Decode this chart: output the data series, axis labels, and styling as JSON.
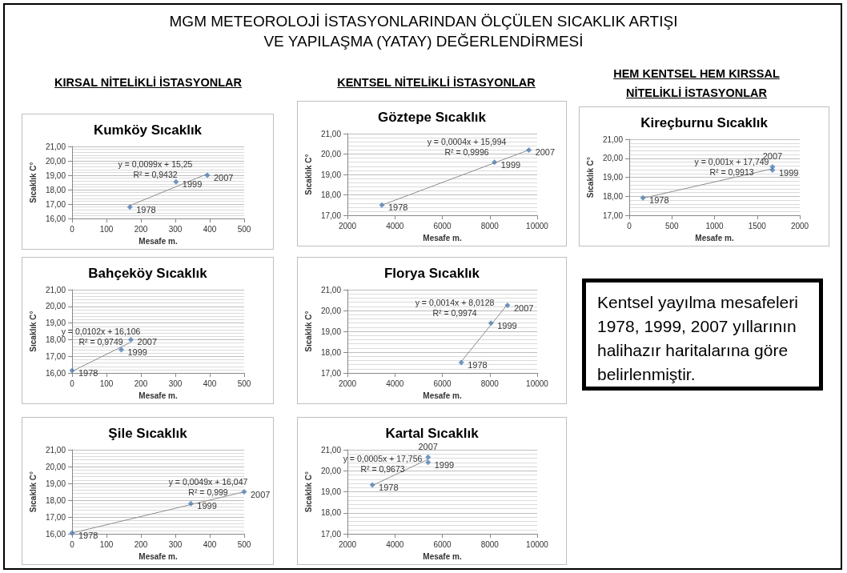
{
  "chart_data": [
    {
      "type": "other",
      "title": "MGM METEOROLOJİ İSTASYONLARINDAN ÖLÇÜLEN SICAKLIK ARTIŞI VE YAPILAŞMA (YATAY) DEĞERLENDİRMESİ",
      "annotations": [
        "KIRSAL NİTELİKLİ İSTASYONLAR",
        "KENTSEL NİTELİKLİ İSTASYONLAR",
        "HEM KENTSEL HEM KIRSSAL NİTELİKLİ İSTASYONLAR"
      ]
    },
    {
      "type": "scatter",
      "title": "Kumköy Sıcaklık",
      "xlabel": "Mesafe m.",
      "ylabel": "Sıcaklık C°",
      "grid": "y",
      "xlim": [
        0,
        500
      ],
      "xticks": [
        0,
        100,
        200,
        300,
        400,
        500
      ],
      "ylim": [
        16,
        21
      ],
      "yticks": [
        {
          "value": 16,
          "label": "16,00"
        },
        {
          "value": 17,
          "label": "17,00"
        },
        {
          "value": 18,
          "label": "18,00"
        },
        {
          "value": 19,
          "label": "19,00"
        },
        {
          "value": 20,
          "label": "20,00"
        },
        {
          "value": 21,
          "label": "21,00"
        }
      ],
      "series": [
        {
          "color": "#4a7ebb",
          "marker": "diamond",
          "x": [
            168,
            302,
            393
          ],
          "values": [
            16.8,
            18.55,
            19.0
          ]
        },
        {
          "type": "line",
          "marker": "none",
          "color": "#8c8c8c",
          "x": [
            168,
            393
          ],
          "values": [
            16.9,
            19.1
          ]
        }
      ],
      "annotations": [
        {
          "text": "1978",
          "x": 168,
          "y": 16.8
        },
        {
          "text": "1999",
          "x": 302,
          "y": 18.55
        },
        {
          "text": "2007",
          "x": 393,
          "y": 19.0
        },
        "y = 0,0099x + 15,25",
        "R² = 0,9432"
      ]
    },
    {
      "type": "scatter",
      "title": "Göztepe Sıcaklık",
      "xlabel": "Mesafe m.",
      "ylabel": "Sıcaklık C°",
      "grid": "y",
      "xlim": [
        2000,
        10000
      ],
      "xticks": [
        2000,
        4000,
        6000,
        8000,
        10000
      ],
      "ylim": [
        17,
        21
      ],
      "yticks": [
        {
          "value": 17,
          "label": "17,00"
        },
        {
          "value": 18,
          "label": "18,00"
        },
        {
          "value": 19,
          "label": "19,00"
        },
        {
          "value": 20,
          "label": "20,00"
        },
        {
          "value": 21,
          "label": "21,00"
        }
      ],
      "series": [
        {
          "color": "#4a7ebb",
          "marker": "diamond",
          "x": [
            3450,
            8200,
            9650
          ],
          "values": [
            17.5,
            19.6,
            20.2
          ]
        },
        {
          "type": "line",
          "marker": "none",
          "color": "#8c8c8c",
          "x": [
            3450,
            9650
          ],
          "values": [
            17.5,
            20.2
          ]
        }
      ],
      "annotations": [
        {
          "text": "1978",
          "x": 3450,
          "y": 17.5
        },
        {
          "text": "1999",
          "x": 8200,
          "y": 19.6
        },
        {
          "text": "2007",
          "x": 9650,
          "y": 20.2
        },
        "y = 0,0004x + 15,994",
        "R² = 0,9996"
      ]
    },
    {
      "type": "scatter",
      "title": "Kireçburnu Sıcaklık",
      "xlabel": "Mesafe m.",
      "ylabel": "Sıcaklık C°",
      "grid": "y",
      "xlim": [
        0,
        2000
      ],
      "xticks": [
        0,
        500,
        1000,
        1500,
        2000
      ],
      "ylim": [
        17,
        21
      ],
      "yticks": [
        {
          "value": 17,
          "label": "17,00"
        },
        {
          "value": 18,
          "label": "18,00"
        },
        {
          "value": 19,
          "label": "19,00"
        },
        {
          "value": 20,
          "label": "20,00"
        },
        {
          "value": 21,
          "label": "21,00"
        }
      ],
      "series": [
        {
          "color": "#4a7ebb",
          "marker": "diamond",
          "x": [
            160,
            1680,
            1680
          ],
          "values": [
            17.92,
            19.38,
            19.55
          ]
        },
        {
          "type": "line",
          "marker": "none",
          "color": "#8c8c8c",
          "x": [
            160,
            1680
          ],
          "values": [
            17.9,
            19.45
          ]
        }
      ],
      "annotations": [
        {
          "text": "1978",
          "x": 160,
          "y": 17.92
        },
        {
          "text": "1999",
          "x": 1680,
          "y": 19.38
        },
        {
          "text": "2007",
          "x": 1680,
          "y": 19.55
        },
        "y = 0,001x + 17,749",
        "R² = 0,9913"
      ]
    },
    {
      "type": "scatter",
      "title": "Bahçeköy Sıcaklık",
      "xlabel": "Mesafe m.",
      "ylabel": "Sıcaklık C°",
      "grid": "y",
      "xlim": [
        0,
        500
      ],
      "xticks": [
        0,
        100,
        200,
        300,
        400,
        500
      ],
      "ylim": [
        16,
        21
      ],
      "yticks": [
        {
          "value": 16,
          "label": "16,00"
        },
        {
          "value": 17,
          "label": "17,00"
        },
        {
          "value": 18,
          "label": "18,00"
        },
        {
          "value": 19,
          "label": "19,00"
        },
        {
          "value": 20,
          "label": "20,00"
        },
        {
          "value": 21,
          "label": "21,00"
        }
      ],
      "series": [
        {
          "color": "#4a7ebb",
          "marker": "diamond",
          "x": [
            0,
            143,
            171
          ],
          "values": [
            16.15,
            17.4,
            18.0
          ]
        },
        {
          "type": "line",
          "marker": "none",
          "color": "#8c8c8c",
          "x": [
            0,
            171
          ],
          "values": [
            16.1,
            17.85
          ]
        }
      ],
      "annotations": [
        {
          "text": "1978",
          "x": 0,
          "y": 16.15
        },
        {
          "text": "1999",
          "x": 143,
          "y": 17.4
        },
        {
          "text": "2007",
          "x": 171,
          "y": 18.0
        },
        "y = 0,0102x + 16,106",
        "R² = 0,9749"
      ]
    },
    {
      "type": "scatter",
      "title": "Florya Sıcaklık",
      "xlabel": "Mesafe m.",
      "ylabel": "Sıcaklık C°",
      "grid": "y",
      "xlim": [
        2000,
        10000
      ],
      "xticks": [
        2000,
        4000,
        6000,
        8000,
        10000
      ],
      "ylim": [
        17,
        21
      ],
      "yticks": [
        {
          "value": 17,
          "label": "17,00"
        },
        {
          "value": 18,
          "label": "18,00"
        },
        {
          "value": 19,
          "label": "19,00"
        },
        {
          "value": 20,
          "label": "20,00"
        },
        {
          "value": 21,
          "label": "21,00"
        }
      ],
      "series": [
        {
          "color": "#4a7ebb",
          "marker": "diamond",
          "x": [
            6800,
            8050,
            8750
          ],
          "values": [
            17.5,
            19.4,
            20.25
          ]
        },
        {
          "type": "line",
          "marker": "none",
          "color": "#8c8c8c",
          "x": [
            6800,
            8750
          ],
          "values": [
            17.55,
            20.3
          ]
        }
      ],
      "annotations": [
        {
          "text": "1978",
          "x": 6800,
          "y": 17.5
        },
        {
          "text": "1999",
          "x": 8050,
          "y": 19.4
        },
        {
          "text": "2007",
          "x": 8750,
          "y": 20.25
        },
        "y = 0,0014x + 8,0128",
        "R² = 0,9974"
      ]
    },
    {
      "type": "other",
      "annotations": [
        "Kentsel yayılma mesafeleri 1978, 1999, 2007 yıllarının halihazır haritalarına göre belirlenmiştir."
      ]
    },
    {
      "type": "scatter",
      "title": "Şile Sıcaklık",
      "xlabel": "Mesafe m.",
      "ylabel": "Sıcaklık C°",
      "grid": "y",
      "xlim": [
        0,
        500
      ],
      "xticks": [
        0,
        100,
        200,
        300,
        400,
        500
      ],
      "ylim": [
        16,
        21
      ],
      "yticks": [
        {
          "value": 16,
          "label": "16,00"
        },
        {
          "value": 17,
          "label": "17,00"
        },
        {
          "value": 18,
          "label": "18,00"
        },
        {
          "value": 19,
          "label": "19,00"
        },
        {
          "value": 20,
          "label": "20,00"
        },
        {
          "value": 21,
          "label": "21,00"
        }
      ],
      "series": [
        {
          "color": "#4a7ebb",
          "marker": "diamond",
          "x": [
            0,
            345,
            500
          ],
          "values": [
            16.05,
            17.8,
            18.5
          ]
        },
        {
          "type": "line",
          "marker": "none",
          "color": "#8c8c8c",
          "x": [
            0,
            500
          ],
          "values": [
            16.05,
            18.5
          ]
        }
      ],
      "annotations": [
        {
          "text": "1978",
          "x": 0,
          "y": 16.05
        },
        {
          "text": "1999",
          "x": 345,
          "y": 17.8
        },
        {
          "text": "2007",
          "x": 500,
          "y": 18.5
        },
        "y = 0,0049x + 16,047",
        "R² = 0,999"
      ]
    },
    {
      "type": "scatter",
      "title": "Kartal Sıcaklık",
      "xlabel": "Mesafe m.",
      "ylabel": "Sıcaklık C°",
      "grid": "y",
      "xlim": [
        2000,
        10000
      ],
      "xticks": [
        2000,
        4000,
        6000,
        8000,
        10000
      ],
      "ylim": [
        17,
        21
      ],
      "yticks": [
        {
          "value": 17,
          "label": "17,00"
        },
        {
          "value": 18,
          "label": "18,00"
        },
        {
          "value": 19,
          "label": "19,00"
        },
        {
          "value": 20,
          "label": "20,00"
        },
        {
          "value": 21,
          "label": "21,00"
        }
      ],
      "series": [
        {
          "color": "#4a7ebb",
          "marker": "diamond",
          "x": [
            3050,
            5400,
            5400
          ],
          "values": [
            19.33,
            20.4,
            20.65
          ]
        },
        {
          "type": "line",
          "marker": "none",
          "color": "#8c8c8c",
          "x": [
            3050,
            5400
          ],
          "values": [
            19.3,
            20.55
          ]
        }
      ],
      "annotations": [
        {
          "text": "1978",
          "x": 3050,
          "y": 19.33
        },
        {
          "text": "1999",
          "x": 5400,
          "y": 20.4
        },
        {
          "text": "2007",
          "x": 5400,
          "y": 20.65
        },
        "y = 0,0005x + 17,756",
        "R² = 0,9673"
      ]
    }
  ]
}
